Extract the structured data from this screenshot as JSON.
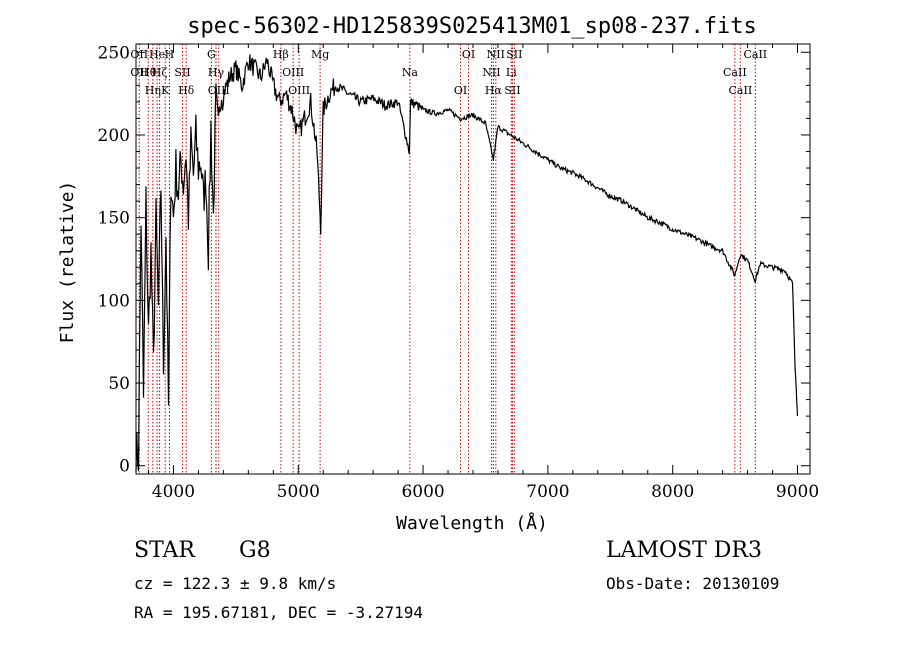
{
  "chart_data": {
    "type": "line",
    "title": "spec-56302-HD125839S025413M01_sp08-237.fits",
    "xlabel": "Wavelength (Å)",
    "ylabel": "Flux (relative)",
    "xlim": [
      3700,
      9100
    ],
    "ylim": [
      -5,
      255
    ],
    "xticks": [
      4000,
      5000,
      6000,
      7000,
      8000,
      9000
    ],
    "yticks": [
      0,
      50,
      100,
      150,
      200,
      250
    ],
    "series": [
      {
        "name": "flux",
        "x": [
          3700,
          3720,
          3740,
          3760,
          3780,
          3800,
          3820,
          3840,
          3860,
          3880,
          3900,
          3920,
          3940,
          3960,
          3980,
          4000,
          4020,
          4040,
          4060,
          4080,
          4100,
          4120,
          4140,
          4160,
          4180,
          4200,
          4220,
          4240,
          4260,
          4280,
          4300,
          4320,
          4340,
          4360,
          4380,
          4400,
          4450,
          4500,
          4550,
          4600,
          4650,
          4700,
          4750,
          4800,
          4850,
          4900,
          4950,
          5000,
          5050,
          5100,
          5150,
          5180,
          5200,
          5250,
          5300,
          5400,
          5500,
          5600,
          5700,
          5800,
          5890,
          5900,
          5950,
          6000,
          6100,
          6200,
          6300,
          6400,
          6500,
          6563,
          6600,
          6700,
          6800,
          6900,
          7000,
          7100,
          7200,
          7300,
          7400,
          7500,
          7600,
          7700,
          7800,
          7900,
          8000,
          8100,
          8200,
          8300,
          8400,
          8498,
          8542,
          8600,
          8662,
          8700,
          8800,
          8900,
          8960,
          8980,
          9000
        ],
        "values": [
          10,
          5,
          150,
          40,
          160,
          80,
          130,
          60,
          150,
          95,
          170,
          60,
          140,
          35,
          175,
          150,
          180,
          165,
          185,
          170,
          190,
          150,
          195,
          175,
          200,
          180,
          185,
          160,
          175,
          130,
          205,
          150,
          220,
          200,
          230,
          225,
          235,
          240,
          230,
          245,
          240,
          235,
          245,
          230,
          220,
          225,
          215,
          200,
          210,
          220,
          190,
          145,
          215,
          225,
          230,
          225,
          220,
          222,
          218,
          220,
          190,
          220,
          218,
          215,
          213,
          215,
          210,
          212,
          207,
          185,
          205,
          200,
          195,
          190,
          185,
          180,
          177,
          173,
          168,
          163,
          160,
          155,
          150,
          147,
          143,
          140,
          137,
          133,
          130,
          115,
          128,
          124,
          112,
          122,
          120,
          118,
          110,
          60,
          30
        ]
      }
    ],
    "lines": [
      {
        "x": 3726,
        "labels": [
          "OⅠⅠ",
          "OⅠⅠ"
        ],
        "note": "OII"
      },
      {
        "x": 3798,
        "labels": [
          "Hθ"
        ]
      },
      {
        "x": 3835,
        "labels": [
          "Hη"
        ]
      },
      {
        "x": 3869,
        "labels": [
          "He"
        ]
      },
      {
        "x": 3889,
        "labels": [
          "Hζ"
        ]
      },
      {
        "x": 3934,
        "labels": [
          "K"
        ]
      },
      {
        "x": 3968,
        "labels": [
          "H"
        ]
      },
      {
        "x": 4072,
        "labels": [
          "SⅠⅠ"
        ]
      },
      {
        "x": 4102,
        "labels": [
          "Hδ"
        ]
      },
      {
        "x": 4304,
        "labels": [
          "G"
        ]
      },
      {
        "x": 4341,
        "labels": [
          "Hγ"
        ]
      },
      {
        "x": 4363,
        "labels": [
          "OⅠⅠⅠ"
        ]
      },
      {
        "x": 4861,
        "labels": [
          "Hβ"
        ]
      },
      {
        "x": 4959,
        "labels": [
          "OⅠⅠⅠ"
        ]
      },
      {
        "x": 5007,
        "labels": [
          "OⅠⅠⅠ"
        ]
      },
      {
        "x": 5175,
        "labels": [
          "Mg"
        ]
      },
      {
        "x": 5894,
        "labels": [
          "Na"
        ]
      },
      {
        "x": 6300,
        "labels": [
          "OⅠ"
        ]
      },
      {
        "x": 6364,
        "labels": [
          "OⅠ"
        ]
      },
      {
        "x": 6548,
        "labels": [
          "NⅠⅠ"
        ]
      },
      {
        "x": 6563,
        "labels": [
          "Hα"
        ]
      },
      {
        "x": 6583,
        "labels": [
          "NⅠⅠ"
        ]
      },
      {
        "x": 6707,
        "labels": [
          "Li"
        ]
      },
      {
        "x": 6716,
        "labels": [
          "SⅠⅠ"
        ]
      },
      {
        "x": 6731,
        "labels": [
          "SⅠⅠ"
        ]
      },
      {
        "x": 8498,
        "labels": [
          "CaⅠⅠ"
        ]
      },
      {
        "x": 8542,
        "labels": [
          "CaⅠⅠ"
        ]
      },
      {
        "x": 8662,
        "labels": [
          "CaⅠⅠ"
        ]
      }
    ],
    "line_color": "#c00000"
  },
  "info": {
    "class": "STAR",
    "subclass": "G8",
    "survey": "LAMOST DR3",
    "cz": "cz = 122.3 ± 9.8 km/s",
    "obs_date": "Obs-Date: 20130109",
    "coords": "RA = 195.67181, DEC =  -3.27194"
  }
}
